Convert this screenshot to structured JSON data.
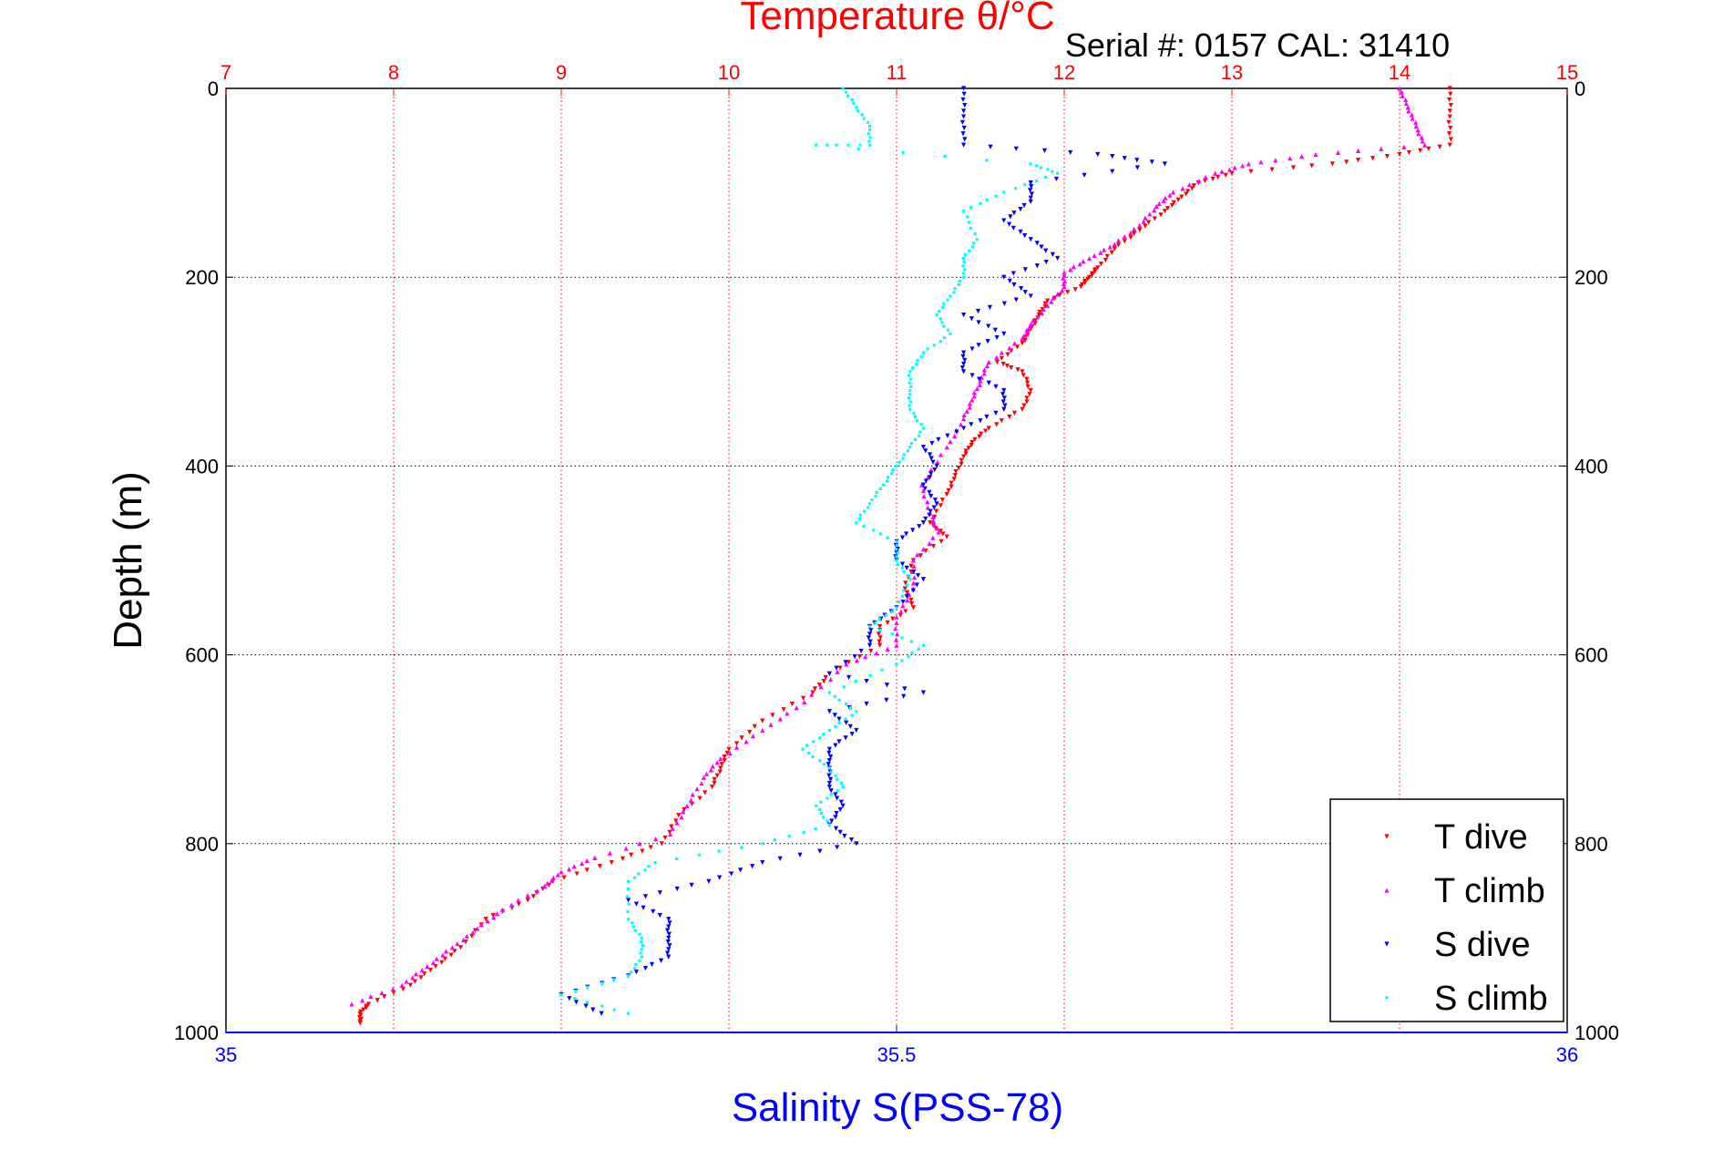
{
  "chart_data": {
    "type": "scatter",
    "title": "Temperature θ/°C",
    "subtitle": "Serial #: 0157  CAL: 31410",
    "ylabel": "Depth (m)",
    "xlabel_bottom": "Salinity S(PSS-78)",
    "axes": {
      "temperature": {
        "lim": [
          7,
          15
        ],
        "ticks": [
          "7",
          "8",
          "9",
          "10",
          "11",
          "12",
          "13",
          "14",
          "15"
        ],
        "color": "#ff0000",
        "grid": true
      },
      "salinity": {
        "lim": [
          35,
          36
        ],
        "ticks": [
          "35",
          "35.5",
          "36"
        ],
        "color": "#0000ff"
      },
      "depth": {
        "lim": [
          0,
          1000
        ],
        "reversed": true,
        "ticks": [
          "0",
          "200",
          "400",
          "600",
          "800",
          "1000"
        ],
        "grid": true
      }
    },
    "legend": {
      "placement": "bottom-right"
    },
    "series": [
      {
        "name": "T dive",
        "axis": "temperature",
        "color": "#ff0000",
        "marker": "triangle-down",
        "points": [
          [
            14.3,
            0
          ],
          [
            14.3,
            30
          ],
          [
            14.3,
            60
          ],
          [
            14.0,
            70
          ],
          [
            13.6,
            80
          ],
          [
            13.0,
            90
          ],
          [
            12.8,
            100
          ],
          [
            12.7,
            115
          ],
          [
            12.6,
            130
          ],
          [
            12.45,
            150
          ],
          [
            12.3,
            170
          ],
          [
            12.2,
            190
          ],
          [
            12.15,
            200
          ],
          [
            12.1,
            210
          ],
          [
            11.9,
            225
          ],
          [
            11.85,
            240
          ],
          [
            11.8,
            255
          ],
          [
            11.75,
            270
          ],
          [
            11.6,
            290
          ],
          [
            11.75,
            300
          ],
          [
            11.8,
            320
          ],
          [
            11.75,
            340
          ],
          [
            11.55,
            360
          ],
          [
            11.45,
            375
          ],
          [
            11.4,
            390
          ],
          [
            11.35,
            410
          ],
          [
            11.3,
            430
          ],
          [
            11.2,
            460
          ],
          [
            11.3,
            475
          ],
          [
            11.1,
            500
          ],
          [
            11.05,
            530
          ],
          [
            11.1,
            550
          ],
          [
            10.9,
            570
          ],
          [
            10.9,
            590
          ],
          [
            10.6,
            620
          ],
          [
            10.5,
            640
          ],
          [
            10.2,
            670
          ],
          [
            10.0,
            700
          ],
          [
            9.95,
            720
          ],
          [
            9.9,
            740
          ],
          [
            9.7,
            770
          ],
          [
            9.6,
            800
          ],
          [
            9.3,
            820
          ],
          [
            8.95,
            840
          ],
          [
            8.8,
            860
          ],
          [
            8.55,
            880
          ],
          [
            8.4,
            910
          ],
          [
            8.25,
            930
          ],
          [
            8.1,
            950
          ],
          [
            7.85,
            970
          ],
          [
            7.8,
            980
          ],
          [
            7.8,
            990
          ]
        ]
      },
      {
        "name": "T climb",
        "axis": "temperature",
        "color": "#ff00ff",
        "marker": "triangle-up",
        "points": [
          [
            14.0,
            0
          ],
          [
            14.05,
            20
          ],
          [
            14.1,
            40
          ],
          [
            14.15,
            60
          ],
          [
            13.5,
            70
          ],
          [
            13.1,
            80
          ],
          [
            12.9,
            90
          ],
          [
            12.65,
            110
          ],
          [
            12.55,
            125
          ],
          [
            12.45,
            145
          ],
          [
            12.3,
            165
          ],
          [
            12.15,
            180
          ],
          [
            12.0,
            195
          ],
          [
            12.0,
            210
          ],
          [
            11.9,
            230
          ],
          [
            11.8,
            250
          ],
          [
            11.75,
            265
          ],
          [
            11.55,
            290
          ],
          [
            11.5,
            310
          ],
          [
            11.45,
            330
          ],
          [
            11.4,
            350
          ],
          [
            11.3,
            380
          ],
          [
            11.15,
            420
          ],
          [
            11.2,
            450
          ],
          [
            11.25,
            470
          ],
          [
            11.1,
            500
          ],
          [
            11.1,
            530
          ],
          [
            11.0,
            560
          ],
          [
            11.0,
            590
          ],
          [
            10.7,
            610
          ],
          [
            10.45,
            650
          ],
          [
            10.2,
            680
          ],
          [
            9.95,
            710
          ],
          [
            9.85,
            730
          ],
          [
            9.75,
            760
          ],
          [
            9.65,
            790
          ],
          [
            9.2,
            815
          ],
          [
            9.0,
            830
          ],
          [
            8.9,
            845
          ],
          [
            8.65,
            870
          ],
          [
            8.5,
            890
          ],
          [
            8.35,
            910
          ],
          [
            8.2,
            930
          ],
          [
            8.05,
            950
          ],
          [
            7.75,
            970
          ]
        ]
      },
      {
        "name": "S dive",
        "axis": "salinity",
        "color": "#0000ff",
        "marker": "triangle-down",
        "points": [
          [
            35.55,
            0
          ],
          [
            35.55,
            30
          ],
          [
            35.55,
            60
          ],
          [
            35.65,
            70
          ],
          [
            35.7,
            80
          ],
          [
            35.6,
            100
          ],
          [
            35.6,
            120
          ],
          [
            35.58,
            140
          ],
          [
            35.6,
            160
          ],
          [
            35.62,
            180
          ],
          [
            35.58,
            200
          ],
          [
            35.6,
            220
          ],
          [
            35.55,
            240
          ],
          [
            35.58,
            260
          ],
          [
            35.55,
            280
          ],
          [
            35.55,
            300
          ],
          [
            35.58,
            320
          ],
          [
            35.58,
            340
          ],
          [
            35.55,
            360
          ],
          [
            35.52,
            380
          ],
          [
            35.53,
            400
          ],
          [
            35.52,
            420
          ],
          [
            35.53,
            440
          ],
          [
            35.52,
            460
          ],
          [
            35.5,
            480
          ],
          [
            35.5,
            500
          ],
          [
            35.52,
            520
          ],
          [
            35.5,
            550
          ],
          [
            35.48,
            570
          ],
          [
            35.48,
            590
          ],
          [
            35.45,
            620
          ],
          [
            35.52,
            640
          ],
          [
            35.45,
            660
          ],
          [
            35.47,
            680
          ],
          [
            35.45,
            700
          ],
          [
            35.45,
            720
          ],
          [
            35.45,
            740
          ],
          [
            35.46,
            760
          ],
          [
            35.45,
            780
          ],
          [
            35.47,
            800
          ],
          [
            35.4,
            820
          ],
          [
            35.36,
            840
          ],
          [
            35.3,
            860
          ],
          [
            35.33,
            880
          ],
          [
            35.33,
            900
          ],
          [
            35.33,
            920
          ],
          [
            35.3,
            940
          ],
          [
            35.25,
            960
          ],
          [
            35.28,
            980
          ]
        ]
      },
      {
        "name": "S climb",
        "axis": "salinity",
        "color": "#00ffff",
        "marker": "point",
        "points": [
          [
            35.46,
            0
          ],
          [
            35.47,
            20
          ],
          [
            35.48,
            40
          ],
          [
            35.48,
            60
          ],
          [
            35.44,
            60
          ],
          [
            35.6,
            80
          ],
          [
            35.62,
            90
          ],
          [
            35.58,
            110
          ],
          [
            35.55,
            130
          ],
          [
            35.56,
            160
          ],
          [
            35.55,
            180
          ],
          [
            35.55,
            200
          ],
          [
            35.54,
            220
          ],
          [
            35.53,
            240
          ],
          [
            35.54,
            260
          ],
          [
            35.52,
            280
          ],
          [
            35.51,
            300
          ],
          [
            35.51,
            320
          ],
          [
            35.51,
            340
          ],
          [
            35.52,
            360
          ],
          [
            35.51,
            380
          ],
          [
            35.5,
            400
          ],
          [
            35.49,
            420
          ],
          [
            35.48,
            440
          ],
          [
            35.47,
            460
          ],
          [
            35.5,
            480
          ],
          [
            35.5,
            500
          ],
          [
            35.51,
            520
          ],
          [
            35.5,
            550
          ],
          [
            35.48,
            570
          ],
          [
            35.52,
            590
          ],
          [
            35.5,
            610
          ],
          [
            35.45,
            640
          ],
          [
            35.47,
            660
          ],
          [
            35.45,
            680
          ],
          [
            35.43,
            700
          ],
          [
            35.45,
            720
          ],
          [
            35.46,
            740
          ],
          [
            35.44,
            760
          ],
          [
            35.45,
            780
          ],
          [
            35.4,
            800
          ],
          [
            35.32,
            820
          ],
          [
            35.3,
            840
          ],
          [
            35.3,
            880
          ],
          [
            35.31,
            900
          ],
          [
            35.31,
            920
          ],
          [
            35.3,
            940
          ],
          [
            35.25,
            960
          ],
          [
            35.3,
            980
          ]
        ]
      }
    ]
  }
}
